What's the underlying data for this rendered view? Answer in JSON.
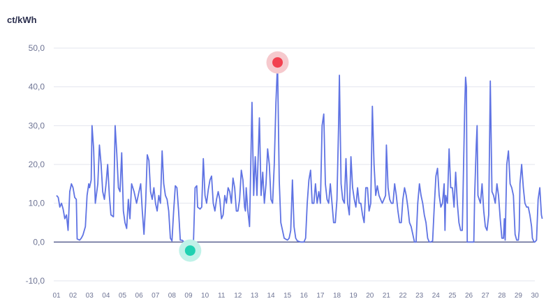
{
  "chart_data": {
    "type": "line",
    "ylabel": "ct/kWh",
    "ylim": [
      -10,
      50
    ],
    "yticks": [
      50,
      40,
      30,
      20,
      10,
      0,
      -10
    ],
    "ytick_labels": [
      "50,0",
      "40,0",
      "30,0",
      "20,0",
      "10,0",
      "0,0",
      "-10,0"
    ],
    "xlim": [
      1,
      30
    ],
    "xticks": [
      1,
      2,
      3,
      4,
      5,
      6,
      7,
      8,
      9,
      10,
      11,
      12,
      13,
      14,
      15,
      16,
      17,
      18,
      19,
      20,
      21,
      22,
      23,
      24,
      25,
      26,
      27,
      28,
      29,
      30
    ],
    "xtick_labels": [
      "01",
      "02",
      "03",
      "04",
      "05",
      "06",
      "07",
      "08",
      "09",
      "10",
      "11",
      "12",
      "13",
      "14",
      "15",
      "16",
      "17",
      "18",
      "19",
      "20",
      "21",
      "22",
      "23",
      "24",
      "25",
      "26",
      "27",
      "28",
      "29",
      "30"
    ],
    "grid": true,
    "colors": {
      "line": "#5f73e3",
      "zero_line": "#5b6190",
      "grid": "#e3e5ee",
      "max_marker": "#f2404f",
      "max_halo": "#f6c9cd",
      "min_marker": "#1fd1b1",
      "min_halo": "#bff2e8"
    },
    "max_point": {
      "x": 14.4,
      "y": 46.3
    },
    "min_point": {
      "x": 9.1,
      "y": -2.2
    },
    "series": [
      {
        "points": [
          [
            1.0,
            12.0
          ],
          [
            1.1,
            11.5
          ],
          [
            1.2,
            9.0
          ],
          [
            1.3,
            10.0
          ],
          [
            1.4,
            8.5
          ],
          [
            1.5,
            6.0
          ],
          [
            1.6,
            7.0
          ],
          [
            1.7,
            3.0
          ],
          [
            1.8,
            13.0
          ],
          [
            1.9,
            15.0
          ],
          [
            2.0,
            14.0
          ],
          [
            2.1,
            11.5
          ],
          [
            2.2,
            11.0
          ],
          [
            2.25,
            0.8
          ],
          [
            2.4,
            0.5
          ],
          [
            2.5,
            1.0
          ],
          [
            2.6,
            1.8
          ],
          [
            2.75,
            4.0
          ],
          [
            2.85,
            12.0
          ],
          [
            2.95,
            15.0
          ],
          [
            3.0,
            14.0
          ],
          [
            3.1,
            16.0
          ],
          [
            3.15,
            30.0
          ],
          [
            3.25,
            24.0
          ],
          [
            3.35,
            10.0
          ],
          [
            3.5,
            15.0
          ],
          [
            3.6,
            25.0
          ],
          [
            3.7,
            20.0
          ],
          [
            3.8,
            13.0
          ],
          [
            3.9,
            11.0
          ],
          [
            4.0,
            15.0
          ],
          [
            4.1,
            20.0
          ],
          [
            4.2,
            12.0
          ],
          [
            4.3,
            7.0
          ],
          [
            4.45,
            6.5
          ],
          [
            4.55,
            30.0
          ],
          [
            4.65,
            23.0
          ],
          [
            4.75,
            14.0
          ],
          [
            4.85,
            13.0
          ],
          [
            4.95,
            23.0
          ],
          [
            5.05,
            8.0
          ],
          [
            5.15,
            5.0
          ],
          [
            5.25,
            3.5
          ],
          [
            5.35,
            11.0
          ],
          [
            5.45,
            6.0
          ],
          [
            5.55,
            15.0
          ],
          [
            5.7,
            13.0
          ],
          [
            5.85,
            10.0
          ],
          [
            6.0,
            13.0
          ],
          [
            6.1,
            15.0
          ],
          [
            6.2,
            8.0
          ],
          [
            6.3,
            2.0
          ],
          [
            6.4,
            10.0
          ],
          [
            6.5,
            22.5
          ],
          [
            6.6,
            21.0
          ],
          [
            6.7,
            13.0
          ],
          [
            6.8,
            11.0
          ],
          [
            6.9,
            14.0
          ],
          [
            7.0,
            10.0
          ],
          [
            7.1,
            8.0
          ],
          [
            7.2,
            12.0
          ],
          [
            7.3,
            10.0
          ],
          [
            7.4,
            23.5
          ],
          [
            7.5,
            15.0
          ],
          [
            7.6,
            12.0
          ],
          [
            7.7,
            11.0
          ],
          [
            7.8,
            8.0
          ],
          [
            7.9,
            1.0
          ],
          [
            8.0,
            0.3
          ],
          [
            8.1,
            8.0
          ],
          [
            8.2,
            14.5
          ],
          [
            8.3,
            14.0
          ],
          [
            8.4,
            8.0
          ],
          [
            8.5,
            0.5
          ],
          [
            8.6,
            0.5
          ],
          [
            8.75,
            0.0
          ],
          [
            8.9,
            -0.5
          ],
          [
            9.0,
            -1.5
          ],
          [
            9.1,
            -2.2
          ],
          [
            9.2,
            -1.0
          ],
          [
            9.3,
            0.0
          ],
          [
            9.4,
            14.0
          ],
          [
            9.5,
            14.5
          ],
          [
            9.55,
            9.0
          ],
          [
            9.7,
            8.5
          ],
          [
            9.8,
            9.0
          ],
          [
            9.9,
            21.5
          ],
          [
            10.0,
            12.0
          ],
          [
            10.1,
            10.0
          ],
          [
            10.2,
            13.5
          ],
          [
            10.3,
            16.0
          ],
          [
            10.4,
            17.0
          ],
          [
            10.5,
            10.0
          ],
          [
            10.6,
            8.0
          ],
          [
            10.7,
            11.0
          ],
          [
            10.8,
            13.0
          ],
          [
            10.9,
            11.0
          ],
          [
            11.0,
            6.0
          ],
          [
            11.1,
            7.0
          ],
          [
            11.2,
            12.0
          ],
          [
            11.3,
            10.0
          ],
          [
            11.4,
            14.0
          ],
          [
            11.5,
            13.0
          ],
          [
            11.6,
            10.0
          ],
          [
            11.7,
            16.5
          ],
          [
            11.8,
            14.0
          ],
          [
            11.9,
            8.0
          ],
          [
            12.0,
            8.0
          ],
          [
            12.1,
            11.0
          ],
          [
            12.2,
            18.5
          ],
          [
            12.3,
            16.0
          ],
          [
            12.4,
            9.0
          ],
          [
            12.45,
            8.0
          ],
          [
            12.5,
            14.0
          ],
          [
            12.6,
            8.0
          ],
          [
            12.7,
            4.0
          ],
          [
            12.85,
            36.0
          ],
          [
            12.95,
            12.0
          ],
          [
            13.05,
            22.0
          ],
          [
            13.15,
            12.0
          ],
          [
            13.3,
            32.0
          ],
          [
            13.4,
            12.0
          ],
          [
            13.5,
            18.0
          ],
          [
            13.6,
            10.0
          ],
          [
            13.7,
            15.0
          ],
          [
            13.8,
            24.0
          ],
          [
            13.9,
            20.0
          ],
          [
            14.0,
            11.0
          ],
          [
            14.1,
            10.0
          ],
          [
            14.2,
            20.0
          ],
          [
            14.3,
            36.0
          ],
          [
            14.4,
            46.3
          ],
          [
            14.5,
            16.0
          ],
          [
            14.6,
            5.0
          ],
          [
            14.7,
            3.0
          ],
          [
            14.8,
            1.0
          ],
          [
            15.0,
            0.5
          ],
          [
            15.1,
            1.0
          ],
          [
            15.2,
            3.0
          ],
          [
            15.3,
            16.0
          ],
          [
            15.4,
            4.0
          ],
          [
            15.5,
            1.0
          ],
          [
            15.6,
            0.3
          ],
          [
            15.8,
            0.0
          ],
          [
            16.0,
            0.0
          ],
          [
            16.1,
            1.0
          ],
          [
            16.2,
            10.0
          ],
          [
            16.3,
            16.0
          ],
          [
            16.4,
            18.5
          ],
          [
            16.5,
            10.0
          ],
          [
            16.6,
            10.0
          ],
          [
            16.7,
            15.0
          ],
          [
            16.8,
            10.0
          ],
          [
            16.9,
            13.0
          ],
          [
            17.0,
            10.0
          ],
          [
            17.1,
            30.0
          ],
          [
            17.2,
            33.0
          ],
          [
            17.3,
            15.0
          ],
          [
            17.4,
            11.0
          ],
          [
            17.5,
            10.0
          ],
          [
            17.6,
            15.0
          ],
          [
            17.7,
            10.0
          ],
          [
            17.8,
            5.0
          ],
          [
            17.9,
            5.0
          ],
          [
            18.0,
            11.0
          ],
          [
            18.1,
            30.0
          ],
          [
            18.15,
            43.0
          ],
          [
            18.25,
            15.0
          ],
          [
            18.35,
            11.0
          ],
          [
            18.45,
            10.0
          ],
          [
            18.55,
            21.5
          ],
          [
            18.65,
            10.0
          ],
          [
            18.75,
            7.0
          ],
          [
            18.85,
            22.0
          ],
          [
            18.95,
            14.0
          ],
          [
            19.05,
            11.0
          ],
          [
            19.15,
            9.0
          ],
          [
            19.25,
            14.0
          ],
          [
            19.35,
            10.0
          ],
          [
            19.45,
            10.0
          ],
          [
            19.55,
            7.0
          ],
          [
            19.65,
            5.0
          ],
          [
            19.75,
            14.0
          ],
          [
            19.85,
            14.0
          ],
          [
            19.95,
            8.0
          ],
          [
            20.05,
            10.0
          ],
          [
            20.15,
            35.0
          ],
          [
            20.25,
            20.0
          ],
          [
            20.35,
            12.0
          ],
          [
            20.45,
            14.5
          ],
          [
            20.55,
            12.0
          ],
          [
            20.65,
            11.0
          ],
          [
            20.75,
            10.0
          ],
          [
            20.85,
            11.0
          ],
          [
            20.95,
            12.0
          ],
          [
            21.0,
            25.0
          ],
          [
            21.1,
            14.0
          ],
          [
            21.2,
            11.0
          ],
          [
            21.3,
            10.0
          ],
          [
            21.4,
            10.0
          ],
          [
            21.5,
            15.0
          ],
          [
            21.6,
            12.0
          ],
          [
            21.7,
            8.0
          ],
          [
            21.8,
            5.0
          ],
          [
            21.9,
            5.0
          ],
          [
            22.0,
            11.0
          ],
          [
            22.1,
            14.0
          ],
          [
            22.2,
            12.0
          ],
          [
            22.3,
            9.0
          ],
          [
            22.4,
            5.0
          ],
          [
            22.5,
            4.0
          ],
          [
            22.6,
            2.0
          ],
          [
            22.7,
            0.0
          ],
          [
            22.8,
            0.0
          ],
          [
            22.9,
            10.0
          ],
          [
            23.0,
            15.0
          ],
          [
            23.1,
            12.0
          ],
          [
            23.2,
            10.0
          ],
          [
            23.3,
            7.0
          ],
          [
            23.4,
            5.0
          ],
          [
            23.5,
            1.0
          ],
          [
            23.6,
            0.0
          ],
          [
            23.7,
            0.0
          ],
          [
            23.8,
            0.3
          ],
          [
            23.9,
            9.0
          ],
          [
            24.0,
            17.0
          ],
          [
            24.1,
            19.0
          ],
          [
            24.2,
            12.0
          ],
          [
            24.3,
            9.0
          ],
          [
            24.4,
            10.0
          ],
          [
            24.5,
            15.0
          ],
          [
            24.55,
            3.0
          ],
          [
            24.6,
            12.0
          ],
          [
            24.7,
            10.0
          ],
          [
            24.8,
            24.0
          ],
          [
            24.9,
            14.0
          ],
          [
            25.0,
            14.0
          ],
          [
            25.1,
            9.0
          ],
          [
            25.2,
            18.0
          ],
          [
            25.3,
            10.0
          ],
          [
            25.4,
            5.0
          ],
          [
            25.5,
            3.0
          ],
          [
            25.6,
            3.0
          ],
          [
            25.65,
            13.0
          ],
          [
            25.75,
            35.0
          ],
          [
            25.8,
            42.5
          ],
          [
            25.85,
            40.0
          ],
          [
            25.9,
            0.0
          ],
          [
            26.0,
            0.0
          ],
          [
            26.2,
            0.0
          ],
          [
            26.3,
            0.0
          ],
          [
            26.35,
            12.0
          ],
          [
            26.45,
            25.0
          ],
          [
            26.5,
            30.0
          ],
          [
            26.55,
            12.0
          ],
          [
            26.7,
            10.0
          ],
          [
            26.8,
            15.0
          ],
          [
            26.9,
            8.0
          ],
          [
            27.0,
            4.0
          ],
          [
            27.1,
            3.0
          ],
          [
            27.2,
            7.0
          ],
          [
            27.3,
            41.5
          ],
          [
            27.4,
            13.0
          ],
          [
            27.5,
            12.0
          ],
          [
            27.6,
            10.0
          ],
          [
            27.7,
            15.0
          ],
          [
            27.8,
            12.0
          ],
          [
            27.9,
            6.0
          ],
          [
            28.0,
            1.0
          ],
          [
            28.1,
            1.0
          ],
          [
            28.15,
            6.0
          ],
          [
            28.2,
            0.5
          ],
          [
            28.3,
            20.0
          ],
          [
            28.4,
            23.5
          ],
          [
            28.5,
            15.0
          ],
          [
            28.6,
            14.0
          ],
          [
            28.7,
            12.0
          ],
          [
            28.8,
            2.0
          ],
          [
            28.9,
            0.5
          ],
          [
            29.0,
            0.5
          ],
          [
            29.05,
            3.0
          ],
          [
            29.1,
            15.0
          ],
          [
            29.2,
            20.0
          ],
          [
            29.3,
            14.0
          ],
          [
            29.4,
            10.0
          ],
          [
            29.5,
            9.0
          ],
          [
            29.6,
            9.0
          ],
          [
            29.7,
            7.0
          ],
          [
            29.8,
            4.0
          ],
          [
            29.85,
            1.0
          ],
          [
            29.95,
            0.0
          ],
          [
            30.0,
            0.0
          ],
          [
            30.1,
            0.5
          ],
          [
            30.2,
            11.0
          ],
          [
            30.3,
            14.0
          ],
          [
            30.4,
            7.0
          ],
          [
            30.45,
            6.0
          ]
        ]
      }
    ]
  }
}
